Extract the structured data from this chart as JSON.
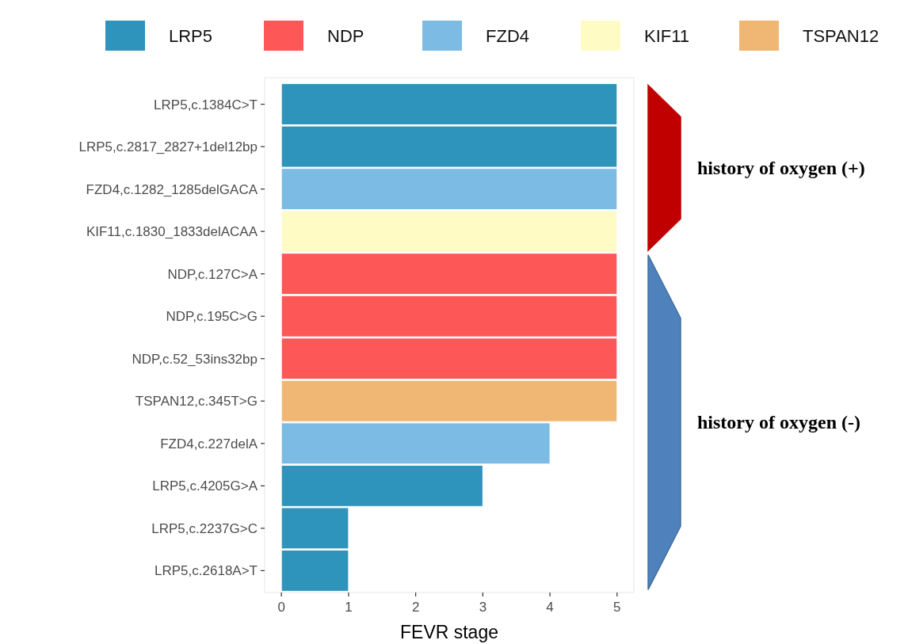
{
  "chart_data": {
    "type": "bar",
    "orientation": "horizontal",
    "xlabel": "FEVR stage",
    "categories": [
      "LRP5,c.1384C>T",
      "LRP5,c.2817_2827+1del12bp",
      "FZD4,c.1282_1285delGACA",
      "KIF11,c.1830_1833delACAA",
      "NDP,c.127C>A",
      "NDP,c.195C>G",
      "NDP,c.52_53ins32bp",
      "TSPAN12,c.345T>G",
      "FZD4,c.227delA",
      "LRP5,c.4205G>A",
      "LRP5,c.2237G>C",
      "LRP5,c.2618A>T"
    ],
    "series": [
      {
        "name": "LRP5",
        "color": "#2e94bb",
        "values": [
          5,
          5,
          null,
          null,
          null,
          null,
          null,
          null,
          null,
          3,
          1,
          1
        ]
      },
      {
        "name": "NDP",
        "color": "#fe5757",
        "values": [
          null,
          null,
          null,
          null,
          5,
          5,
          5,
          null,
          null,
          null,
          null,
          null
        ]
      },
      {
        "name": "FZD4",
        "color": "#7bbbe4",
        "values": [
          null,
          null,
          5,
          null,
          null,
          null,
          null,
          null,
          4,
          null,
          null,
          null
        ]
      },
      {
        "name": "KIF11",
        "color": "#fffbc5",
        "values": [
          null,
          null,
          null,
          5,
          null,
          null,
          null,
          null,
          null,
          null,
          null,
          null
        ]
      },
      {
        "name": "TSPAN12",
        "color": "#f0b674",
        "values": [
          null,
          null,
          null,
          null,
          null,
          null,
          null,
          5,
          null,
          null,
          null,
          null
        ]
      }
    ],
    "xlim": [
      -0.25,
      5.25
    ],
    "xticks": [
      0,
      1,
      2,
      3,
      4,
      5
    ],
    "grid": false,
    "legend": "top",
    "annotations": [
      "history of oxygen (+)",
      "history of oxygen (-)"
    ]
  }
}
